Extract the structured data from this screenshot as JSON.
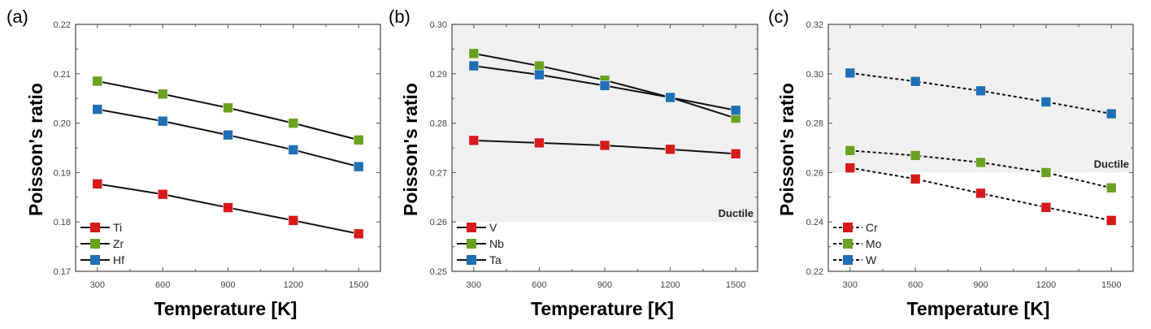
{
  "chart_data": [
    {
      "type": "line",
      "panel_label": "(a)",
      "xlabel": "Temperature [K]",
      "ylabel": "Poisson's ratio",
      "xlim": [
        200,
        1600
      ],
      "ylim": [
        0.17,
        0.22
      ],
      "xticks": [
        "300",
        "600",
        "900",
        "1200",
        "1500"
      ],
      "yticks": [
        "0.17",
        "0.18",
        "0.19",
        "0.20",
        "0.21",
        "0.22"
      ],
      "x": [
        300,
        600,
        900,
        1200,
        1500
      ],
      "line_style": "solid",
      "legend_position": "bottom-left",
      "shaded_region": null,
      "series": [
        {
          "name": "Ti",
          "color": "#d7191c",
          "values": [
            0.1877,
            0.1856,
            0.1829,
            0.1803,
            0.1776
          ]
        },
        {
          "name": "Zr",
          "color": "#6aa121",
          "values": [
            0.2085,
            0.2059,
            0.2031,
            0.2,
            0.1966
          ]
        },
        {
          "name": "Hf",
          "color": "#1f6fb4",
          "values": [
            0.2028,
            0.2004,
            0.1976,
            0.1946,
            0.1912
          ]
        }
      ]
    },
    {
      "type": "line",
      "panel_label": "(b)",
      "xlabel": "Temperature [K]",
      "ylabel": "Poisson's ratio",
      "xlim": [
        200,
        1600
      ],
      "ylim": [
        0.25,
        0.3
      ],
      "xticks": [
        "300",
        "600",
        "900",
        "1200",
        "1500"
      ],
      "yticks": [
        "0.25",
        "0.26",
        "0.27",
        "0.28",
        "0.29",
        "0.30"
      ],
      "x": [
        300,
        600,
        900,
        1200,
        1500
      ],
      "line_style": "solid",
      "legend_position": "bottom-left",
      "shaded_region": {
        "label": "Ductile",
        "from": 0.26,
        "to": 0.3,
        "color": "#f0f0f0"
      },
      "series": [
        {
          "name": "V",
          "color": "#d7191c",
          "values": [
            0.2765,
            0.276,
            0.2755,
            0.2747,
            0.2738
          ]
        },
        {
          "name": "Nb",
          "color": "#6aa121",
          "values": [
            0.2941,
            0.2916,
            0.2887,
            0.2852,
            0.281
          ]
        },
        {
          "name": "Ta",
          "color": "#1f6fb4",
          "values": [
            0.2916,
            0.2898,
            0.2876,
            0.2852,
            0.2826
          ]
        }
      ]
    },
    {
      "type": "line",
      "panel_label": "(c)",
      "xlabel": "Temperature [K]",
      "ylabel": "Poisson's ratio",
      "xlim": [
        200,
        1600
      ],
      "ylim": [
        0.22,
        0.32
      ],
      "xticks": [
        "300",
        "600",
        "900",
        "1200",
        "1500"
      ],
      "yticks": [
        "0.22",
        "0.24",
        "0.26",
        "0.28",
        "0.30",
        "0.32"
      ],
      "x": [
        300,
        600,
        900,
        1200,
        1500
      ],
      "line_style": "dashed",
      "legend_position": "bottom-left",
      "shaded_region": {
        "label": "Ductile",
        "from": 0.26,
        "to": 0.32,
        "color": "#f0f0f0"
      },
      "series": [
        {
          "name": "Cr",
          "color": "#d7191c",
          "values": [
            0.2619,
            0.2574,
            0.2516,
            0.2459,
            0.2406
          ]
        },
        {
          "name": "Mo",
          "color": "#6aa121",
          "values": [
            0.2689,
            0.2669,
            0.2641,
            0.26,
            0.2538
          ]
        },
        {
          "name": "W",
          "color": "#1f6fb4",
          "values": [
            0.3003,
            0.2969,
            0.2931,
            0.2886,
            0.2838
          ]
        }
      ]
    }
  ]
}
